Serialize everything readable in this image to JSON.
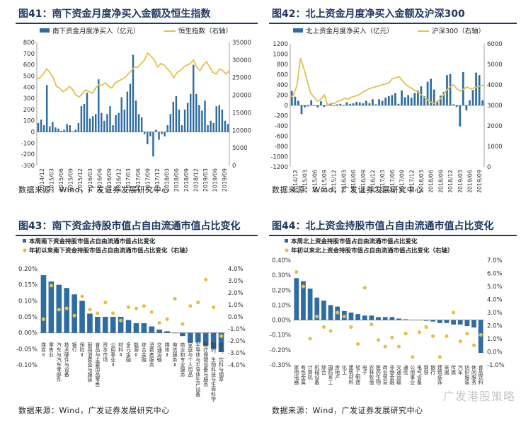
{
  "page": {
    "watermark": "广发港股策略"
  },
  "chart_data": [
    {
      "id": "fig41",
      "type": "bar+line",
      "title": "图41：南下资金月度净买入金额及恒生指数",
      "source": "数据来源：Wind，广发证券发展研究中心",
      "series": [
        {
          "name": "南下资金月度净买入（亿元）",
          "axis": "left",
          "kind": "bar",
          "color": "#2e6da4",
          "values": [
            80,
            110,
            60,
            420,
            50,
            90,
            40,
            30,
            10,
            20,
            70,
            60,
            5,
            20,
            80,
            230,
            250,
            350,
            120,
            140,
            160,
            470,
            170,
            100,
            160,
            230,
            60,
            150,
            170,
            310,
            200,
            360,
            430,
            690,
            280,
            160,
            130,
            -20,
            -110,
            -40,
            -220,
            20,
            -70,
            -20,
            -40,
            60,
            160,
            270,
            320,
            200,
            60,
            200,
            260,
            340,
            600,
            340,
            240,
            190,
            280,
            60,
            100,
            80,
            230,
            240,
            200,
            100,
            70
          ]
        },
        {
          "name": "恒生指数（右轴）",
          "axis": "right",
          "kind": "line",
          "color": "#e3c14a",
          "values": [
            24500,
            25000,
            26000,
            27500,
            26500,
            25000,
            22500,
            22000,
            21000,
            21500,
            22500,
            21500,
            20000,
            19500,
            20500,
            21500,
            21000,
            20500,
            22000,
            23000,
            22800,
            23500,
            22500,
            22000,
            23500,
            24000,
            24500,
            25000,
            26000,
            27000,
            28000,
            28000,
            29000,
            30000,
            32000,
            31000,
            30000,
            28000,
            29000,
            28500,
            27500,
            26500,
            25000,
            26500,
            27000,
            28000,
            28500,
            29000,
            30000,
            28000,
            27000,
            28500,
            29500,
            28000,
            26500,
            26000,
            27500,
            27000,
            26000,
            27000
          ]
        }
      ],
      "x_labels": [
        "2014/12",
        "2015/03",
        "2015/06",
        "2015/09",
        "2015/12",
        "2016/03",
        "2016/06",
        "2016/09",
        "2016/12",
        "2017/03",
        "2017/06",
        "2017/09",
        "2017/12",
        "2018/03",
        "2018/06",
        "2018/09",
        "2018/12",
        "2019/03",
        "2019/06",
        "2019/09"
      ],
      "y_left": {
        "min": -300,
        "max": 800,
        "ticks": [
          "800",
          "700",
          "600",
          "500",
          "400",
          "300",
          "200",
          "100",
          "0",
          "-100",
          "-200",
          "-300"
        ]
      },
      "y_right": {
        "min": 0,
        "max": 35000,
        "ticks": [
          "35000",
          "30000",
          "25000",
          "20000",
          "15000",
          "10000",
          "5000",
          "0"
        ]
      }
    },
    {
      "id": "fig42",
      "type": "bar+line",
      "title": "图42：北上资金月度净买入金额及沪深300",
      "source": "数据来源：Wind，广发证券发展研究中心",
      "series": [
        {
          "name": "北上资金月度净买入（亿元）",
          "axis": "left",
          "kind": "bar",
          "color": "#2e6da4",
          "values": [
            280,
            170,
            90,
            -170,
            -40,
            -20,
            100,
            -10,
            -40,
            80,
            -30,
            -10,
            40,
            -10,
            20,
            30,
            -10,
            60,
            30,
            40,
            70,
            60,
            40,
            90,
            40,
            120,
            20,
            120,
            90,
            150,
            180,
            200,
            240,
            30,
            290,
            160,
            200,
            150,
            240,
            290,
            370,
            180,
            460,
            520,
            310,
            80,
            190,
            260,
            590,
            610,
            20,
            -30,
            -410,
            650,
            -100,
            100,
            300,
            640,
            590,
            100
          ]
        },
        {
          "name": "沪深300（右轴）",
          "axis": "right",
          "kind": "line",
          "color": "#e3c14a",
          "values": [
            3400,
            3500,
            4000,
            5300,
            4800,
            4200,
            3600,
            3400,
            3200,
            3300,
            3500,
            3000,
            3100,
            3100,
            3200,
            3250,
            3350,
            3300,
            3400,
            3450,
            3500,
            3600,
            3700,
            3800,
            3850,
            3900,
            3950,
            4000,
            4050,
            4100,
            4300,
            4350,
            4400,
            4200,
            4000,
            3900,
            3800,
            3700,
            3600,
            3450,
            3300,
            3200,
            3100,
            3150,
            3300,
            3500,
            3750,
            3900,
            4000,
            3800,
            3700,
            3800,
            3900,
            3800,
            3850,
            3900,
            3950,
            4000
          ]
        }
      ],
      "x_labels": [
        "2014/12",
        "2015/03",
        "2015/06",
        "2015/09",
        "2015/12",
        "2016/03",
        "2016/06",
        "2016/09",
        "2016/12",
        "2017/03",
        "2017/06",
        "2017/09",
        "2017/12",
        "2018/03",
        "2018/06",
        "2018/09",
        "2018/12",
        "2019/03",
        "2019/06",
        "2019/09"
      ],
      "y_left": {
        "min": -1200,
        "max": 1200,
        "ticks": [
          "1200",
          "1000",
          "800",
          "600",
          "400",
          "200",
          "0",
          "-200",
          "-400",
          "-600",
          "-800",
          "-1000",
          "-1200"
        ]
      },
      "y_right": {
        "min": 0,
        "max": 6000,
        "ticks": [
          "6000",
          "5000",
          "4000",
          "3000",
          "2000",
          "1000",
          "0"
        ]
      }
    },
    {
      "id": "fig43",
      "type": "bar+scatter",
      "title": "图43：南下资金持股市值占自由流通市值占比变化",
      "source": "数据来源：Wind，广发证券发展研究中心",
      "legend": [
        "本周南下资金持股市值占自由流通市值占比变化",
        "年初以来南下资金持股市值占自由流通市值占比变化（右轴）"
      ],
      "categories": [
        "煤炭Ⅱ",
        "零售业",
        "汽车与汽车零部件",
        "技术硬件与设备",
        "银行",
        "保险Ⅱ",
        "耐用消费品与服装",
        "食品与主要用品零售",
        "资本市场",
        "公用事业Ⅱ",
        "材料Ⅱ",
        "多元金融",
        "能源Ⅱ",
        "综合金融",
        "消费者服务",
        "交通运输",
        "媒体Ⅱ",
        "电信服务Ⅱ",
        "商业和专业服务",
        "家庭与个人用品",
        "半导体与半导体生产设备",
        "医疗保健设备与服务",
        "制药、生物科技与生命科学",
        "食品、饮料与烟草"
      ],
      "bar_values": [
        0.18,
        0.16,
        0.15,
        0.14,
        0.12,
        0.1,
        0.06,
        0.05,
        0.05,
        0.05,
        0.05,
        0.04,
        0.03,
        0.03,
        0.02,
        0.01,
        0.005,
        0.0,
        -0.01,
        -0.03,
        -0.03,
        -0.04,
        -0.05,
        -0.06
      ],
      "scatter_values": [
        -0.2,
        2.6,
        0.6,
        0.7,
        0.1,
        1.7,
        0.6,
        0.3,
        1.2,
        0.3,
        -0.3,
        0.8,
        0.7,
        0.9,
        0.4,
        -0.5,
        -0.2,
        1.5,
        -0.6,
        0.9,
        1.2,
        3.1,
        0.8,
        -1.6
      ],
      "y_left": {
        "min": -0.1,
        "max": 0.2,
        "ticks": [
          "0.20%",
          "0.15%",
          "0.10%",
          "0.05%",
          "0.00%",
          "-0.05%",
          "-0.10%"
        ]
      },
      "y_right": {
        "min": -4,
        "max": 4,
        "ticks": [
          "4.0%",
          "3.0%",
          "2.0%",
          "1.0%",
          "0.0%",
          "-1.0%",
          "-2.0%",
          "-3.0%",
          "-4.0%"
        ]
      }
    },
    {
      "id": "fig44",
      "type": "bar+scatter",
      "title": "图44：北上资金持股市值占自由流通市值占比变化",
      "source": "数据来源：Wind，广发证券发展研究中心",
      "legend": [
        "本周北上资金持股市值占自由流通市值占比变化",
        "年初以来北上资金持股市值占自由流通市值占比变化（右轴）"
      ],
      "categories": [
        "家用电器",
        "有色金属",
        "计算机",
        "机械设备",
        "综合",
        "国防军工",
        "房地产",
        "化工",
        "建筑材料",
        "轻工制造",
        "电子",
        "农林牧渔",
        "医药生物",
        "商业贸易",
        "非银金融",
        "交通运输",
        "通信",
        "公用事业",
        "电气设备",
        "钢铁",
        "银行",
        "建筑装饰",
        "采掘",
        "传媒",
        "汽车",
        "纺织服装",
        "休闲服务",
        "食品饮料"
      ],
      "bar_values": [
        0.28,
        0.26,
        0.21,
        0.15,
        0.13,
        0.1,
        0.09,
        0.06,
        0.05,
        0.04,
        0.03,
        0.03,
        0.02,
        0.02,
        0.02,
        0.01,
        0.005,
        0.0,
        -0.002,
        -0.005,
        -0.01,
        -0.02,
        -0.02,
        -0.03,
        -0.03,
        -0.04,
        -0.05,
        -0.22
      ],
      "scatter_values": [
        6.1,
        5.0,
        1.0,
        2.7,
        1.9,
        1.6,
        3.0,
        2.7,
        1.9,
        0.6,
        4.9,
        2.1,
        0.9,
        0.4,
        1.1,
        0.4,
        1.4,
        -0.4,
        1.5,
        1.9,
        1.2,
        -0.4,
        1.2,
        3.0,
        0.8,
        1.4,
        0.5,
        1.3
      ],
      "y_left": {
        "min": -0.3,
        "max": 0.4,
        "ticks": [
          "0.40%",
          "0.30%",
          "0.20%",
          "0.10%",
          "0.00%",
          "-0.10%",
          "-0.20%",
          "-0.30%"
        ]
      },
      "y_right": {
        "min": -1,
        "max": 7,
        "ticks": [
          "7.0%",
          "6.0%",
          "5.0%",
          "4.0%",
          "3.0%",
          "2.0%",
          "1.0%",
          "0.0%",
          "-1.0%"
        ]
      }
    }
  ]
}
